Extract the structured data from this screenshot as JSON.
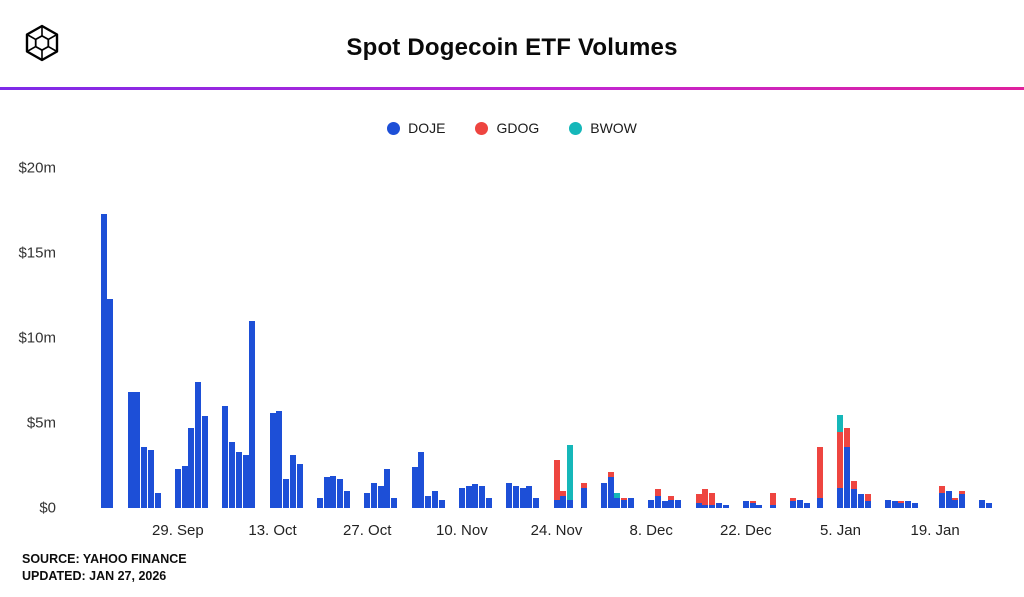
{
  "header": {
    "title": "Spot Dogecoin ETF Volumes"
  },
  "legend": {
    "items": [
      {
        "label": "DOJE",
        "color": "#1d4fd7"
      },
      {
        "label": "GDOG",
        "color": "#ee4540"
      },
      {
        "label": "BWOW",
        "color": "#15b7b9"
      }
    ]
  },
  "accent": {
    "gradient_start": "#7d2ae8",
    "gradient_mid": "#c026d3",
    "gradient_end": "#e0219c"
  },
  "footer": {
    "source_line": "SOURCE: YAHOO FINANCE",
    "updated_line": "UPDATED: JAN 27, 2026"
  },
  "chart_data": {
    "type": "bar",
    "stacked": true,
    "title": "Spot Dogecoin ETF Volumes",
    "unit": "million USD",
    "grid": false,
    "legend_position": "top-center",
    "ylim": [
      0,
      20
    ],
    "yticks": [
      {
        "value": 0,
        "label": "$0"
      },
      {
        "value": 5,
        "label": "$5m"
      },
      {
        "value": 10,
        "label": "$10m"
      },
      {
        "value": 15,
        "label": "$15m"
      },
      {
        "value": 20,
        "label": "$20m"
      }
    ],
    "x_domain": [
      "2025-09-16",
      "2026-01-28"
    ],
    "xticks": [
      {
        "date": "2025-09-29",
        "label": "29. Sep"
      },
      {
        "date": "2025-10-13",
        "label": "13. Oct"
      },
      {
        "date": "2025-10-27",
        "label": "27. Oct"
      },
      {
        "date": "2025-11-10",
        "label": "10. Nov"
      },
      {
        "date": "2025-11-24",
        "label": "24. Nov"
      },
      {
        "date": "2025-12-08",
        "label": "8. Dec"
      },
      {
        "date": "2025-12-22",
        "label": "22. Dec"
      },
      {
        "date": "2026-01-05",
        "label": "5. Jan"
      },
      {
        "date": "2026-01-19",
        "label": "19. Jan"
      }
    ],
    "series_names": [
      "DOJE",
      "GDOG",
      "BWOW"
    ],
    "series_colors": [
      "#1d4fd7",
      "#ee4540",
      "#15b7b9"
    ],
    "point_columns": [
      "date",
      "DOJE",
      "GDOG",
      "BWOW"
    ],
    "points": [
      [
        "2025-09-18",
        17.3,
        0,
        0
      ],
      [
        "2025-09-19",
        12.3,
        0,
        0
      ],
      [
        "2025-09-22",
        6.8,
        0,
        0
      ],
      [
        "2025-09-23",
        6.8,
        0,
        0
      ],
      [
        "2025-09-24",
        3.6,
        0,
        0
      ],
      [
        "2025-09-25",
        3.4,
        0,
        0
      ],
      [
        "2025-09-26",
        0.9,
        0,
        0
      ],
      [
        "2025-09-29",
        2.3,
        0,
        0
      ],
      [
        "2025-09-30",
        2.5,
        0,
        0
      ],
      [
        "2025-10-01",
        4.7,
        0,
        0
      ],
      [
        "2025-10-02",
        7.4,
        0,
        0
      ],
      [
        "2025-10-03",
        5.4,
        0,
        0
      ],
      [
        "2025-10-06",
        6.0,
        0,
        0
      ],
      [
        "2025-10-07",
        3.9,
        0,
        0
      ],
      [
        "2025-10-08",
        3.3,
        0,
        0
      ],
      [
        "2025-10-09",
        3.1,
        0,
        0
      ],
      [
        "2025-10-10",
        11.0,
        0,
        0
      ],
      [
        "2025-10-13",
        5.6,
        0,
        0
      ],
      [
        "2025-10-14",
        5.7,
        0,
        0
      ],
      [
        "2025-10-15",
        1.7,
        0,
        0
      ],
      [
        "2025-10-16",
        3.1,
        0,
        0
      ],
      [
        "2025-10-17",
        2.6,
        0,
        0
      ],
      [
        "2025-10-20",
        0.6,
        0,
        0
      ],
      [
        "2025-10-21",
        1.8,
        0,
        0
      ],
      [
        "2025-10-22",
        1.9,
        0,
        0
      ],
      [
        "2025-10-23",
        1.7,
        0,
        0
      ],
      [
        "2025-10-24",
        1.0,
        0,
        0
      ],
      [
        "2025-10-27",
        0.9,
        0,
        0
      ],
      [
        "2025-10-28",
        1.5,
        0,
        0
      ],
      [
        "2025-10-29",
        1.3,
        0,
        0
      ],
      [
        "2025-10-30",
        2.3,
        0,
        0
      ],
      [
        "2025-10-31",
        0.6,
        0,
        0
      ],
      [
        "2025-11-03",
        2.4,
        0,
        0
      ],
      [
        "2025-11-04",
        3.3,
        0,
        0
      ],
      [
        "2025-11-05",
        0.7,
        0,
        0
      ],
      [
        "2025-11-06",
        1.0,
        0,
        0
      ],
      [
        "2025-11-07",
        0.5,
        0,
        0
      ],
      [
        "2025-11-10",
        1.2,
        0,
        0
      ],
      [
        "2025-11-11",
        1.3,
        0,
        0
      ],
      [
        "2025-11-12",
        1.4,
        0,
        0
      ],
      [
        "2025-11-13",
        1.3,
        0,
        0
      ],
      [
        "2025-11-14",
        0.6,
        0,
        0
      ],
      [
        "2025-11-17",
        1.5,
        0,
        0
      ],
      [
        "2025-11-18",
        1.3,
        0,
        0
      ],
      [
        "2025-11-19",
        1.2,
        0,
        0
      ],
      [
        "2025-11-20",
        1.3,
        0,
        0
      ],
      [
        "2025-11-21",
        0.6,
        0,
        0
      ],
      [
        "2025-11-24",
        0.5,
        2.3,
        0
      ],
      [
        "2025-11-25",
        0.7,
        0.3,
        0
      ],
      [
        "2025-11-26",
        0.5,
        0,
        3.2
      ],
      [
        "2025-11-28",
        1.2,
        0.3,
        0
      ],
      [
        "2025-12-01",
        1.5,
        0,
        0
      ],
      [
        "2025-12-02",
        1.8,
        0.3,
        0
      ],
      [
        "2025-12-03",
        0.6,
        0,
        0.3
      ],
      [
        "2025-12-04",
        0.5,
        0.1,
        0
      ],
      [
        "2025-12-05",
        0.6,
        0,
        0
      ],
      [
        "2025-12-08",
        0.5,
        0,
        0
      ],
      [
        "2025-12-09",
        0.7,
        0.4,
        0
      ],
      [
        "2025-12-10",
        0.4,
        0,
        0
      ],
      [
        "2025-12-11",
        0.5,
        0.2,
        0
      ],
      [
        "2025-12-12",
        0.5,
        0,
        0
      ],
      [
        "2025-12-15",
        0.3,
        0.5,
        0
      ],
      [
        "2025-12-16",
        0.2,
        0.9,
        0
      ],
      [
        "2025-12-17",
        0.2,
        0.7,
        0
      ],
      [
        "2025-12-18",
        0.3,
        0,
        0
      ],
      [
        "2025-12-19",
        0.2,
        0,
        0
      ],
      [
        "2025-12-22",
        0.4,
        0,
        0
      ],
      [
        "2025-12-23",
        0.3,
        0.1,
        0
      ],
      [
        "2025-12-24",
        0.2,
        0,
        0
      ],
      [
        "2025-12-26",
        0.2,
        0.7,
        0
      ],
      [
        "2025-12-29",
        0.4,
        0.2,
        0
      ],
      [
        "2025-12-30",
        0.5,
        0,
        0
      ],
      [
        "2025-12-31",
        0.3,
        0,
        0
      ],
      [
        "2026-01-02",
        0.6,
        3.0,
        0
      ],
      [
        "2026-01-05",
        1.2,
        3.3,
        1.0
      ],
      [
        "2026-01-06",
        3.6,
        1.1,
        0
      ],
      [
        "2026-01-07",
        1.1,
        0.5,
        0
      ],
      [
        "2026-01-08",
        0.8,
        0,
        0
      ],
      [
        "2026-01-09",
        0.4,
        0.4,
        0
      ],
      [
        "2026-01-12",
        0.5,
        0,
        0
      ],
      [
        "2026-01-13",
        0.4,
        0,
        0
      ],
      [
        "2026-01-14",
        0.3,
        0.1,
        0
      ],
      [
        "2026-01-15",
        0.4,
        0,
        0
      ],
      [
        "2026-01-16",
        0.3,
        0,
        0
      ],
      [
        "2026-01-20",
        0.9,
        0.4,
        0
      ],
      [
        "2026-01-21",
        1.0,
        0,
        0
      ],
      [
        "2026-01-22",
        0.5,
        0.1,
        0
      ],
      [
        "2026-01-23",
        0.8,
        0.2,
        0
      ],
      [
        "2026-01-26",
        0.5,
        0,
        0
      ],
      [
        "2026-01-27",
        0.3,
        0,
        0
      ]
    ]
  }
}
